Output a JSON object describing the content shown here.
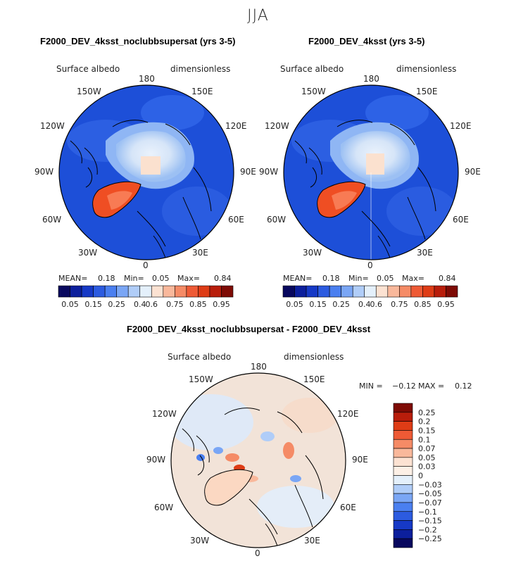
{
  "season": "JJA",
  "panels": [
    {
      "title": "F2000_DEV_4ksst_noclubbsupersat (yrs 3-5)",
      "variable": "Surface albedo",
      "units": "dimensionless",
      "stats": {
        "mean_label": "MEAN=",
        "mean": "0.18",
        "min_label": "Min=",
        "min": "0.05",
        "max_label": "Max=",
        "max": "0.84"
      }
    },
    {
      "title": "F2000_DEV_4ksst (yrs 3-5)",
      "variable": "Surface albedo",
      "units": "dimensionless",
      "stats": {
        "mean_label": "MEAN=",
        "mean": "0.18",
        "min_label": "Min=",
        "min": "0.05",
        "max_label": "Max=",
        "max": "0.84"
      }
    },
    {
      "title": "F2000_DEV_4ksst_noclubbsupersat - F2000_DEV_4ksst",
      "variable": "Surface albedo",
      "units": "dimensionless",
      "stats": {
        "min_label": "MIN =",
        "min": "−0.12",
        "max_label": "MAX =",
        "max": "0.12"
      }
    }
  ],
  "longitude_labels": {
    "top": "180",
    "bottom": "0",
    "upper_left": "150W",
    "upper_right": "150E",
    "left_upper": "120W",
    "right_upper": "120E",
    "left": "90W",
    "right": "90E",
    "left_lower": "60W",
    "right_lower": "60E",
    "lower_left": "30W",
    "lower_right": "30E"
  },
  "colorbar_main": {
    "tick_labels": [
      "0.05",
      "0.15",
      "0.25",
      "0.4",
      "0.6",
      "0.75",
      "0.85",
      "0.95"
    ],
    "colors": [
      "#08085e",
      "#0c1f9c",
      "#1639c6",
      "#2c5be0",
      "#4a7ff0",
      "#7aa6f5",
      "#b0cdf8",
      "#e4f0fb",
      "#fce2d2",
      "#f9b89b",
      "#f58b66",
      "#ee5a35",
      "#de3c16",
      "#b81d0b",
      "#7e0b05"
    ]
  },
  "colorbar_diff": {
    "levels": [
      "0.25",
      "0.2",
      "0.15",
      "0.1",
      "0.07",
      "0.05",
      "0.03",
      "0",
      "−0.03",
      "−0.05",
      "−0.07",
      "−0.1",
      "−0.15",
      "−0.2",
      "−0.25"
    ],
    "colors": [
      "#7e0b05",
      "#b81d0b",
      "#de3c16",
      "#ee5a35",
      "#f58b66",
      "#f9b89b",
      "#fce2d2",
      "#fdf0e6",
      "#e4f0fb",
      "#b0cdf8",
      "#7aa6f5",
      "#4a7ff0",
      "#2c5be0",
      "#1639c6",
      "#0c1f9c",
      "#08085e"
    ]
  },
  "colors": {
    "ocean": "#1d4fd8",
    "sea_ice": "#dce9fa",
    "greenland": "#ef4e23",
    "diff_background": "#f2e3d8"
  }
}
